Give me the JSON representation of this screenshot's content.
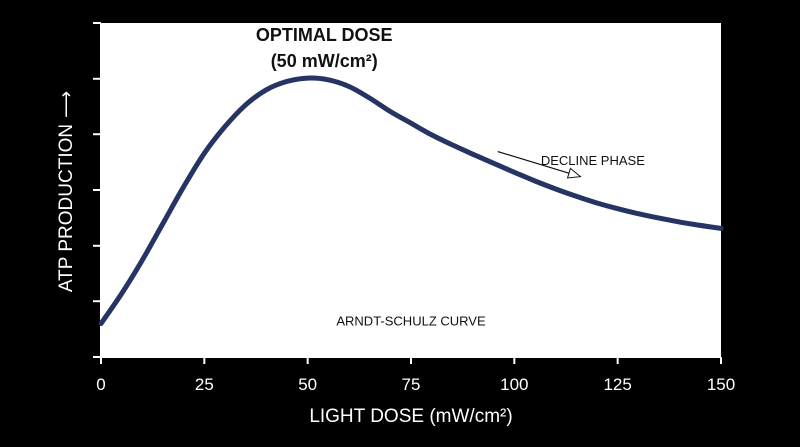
{
  "chart_data": {
    "type": "line",
    "title": "",
    "xlabel": "LIGHT DOSE (mW/cm²)",
    "ylabel": "ATP PRODUCTION",
    "ylabel_arrow": "⟶",
    "xlim": [
      0,
      150
    ],
    "ylim": [
      0,
      100
    ],
    "x_ticks": [
      0,
      25,
      50,
      75,
      100,
      125,
      150
    ],
    "x_tick_labels": [
      "0",
      "25",
      "50",
      "75",
      "100",
      "125",
      "150"
    ],
    "y_ticks": [
      0,
      16.7,
      33.3,
      50,
      66.7,
      83.3,
      100
    ],
    "y_tick_labels": [],
    "grid": false,
    "series": [
      {
        "name": "",
        "color": "#253463",
        "x": [
          0,
          5,
          10,
          15,
          20,
          25,
          30,
          35,
          40,
          45,
          50,
          55,
          60,
          65,
          70,
          75,
          80,
          85,
          90,
          95,
          100,
          105,
          110,
          115,
          120,
          125,
          130,
          135,
          140,
          145,
          150
        ],
        "y": [
          10,
          19,
          29,
          40,
          51,
          61,
          69,
          75.5,
          80,
          82.5,
          83.5,
          83,
          81,
          77.5,
          73.5,
          70,
          66.5,
          63.5,
          60.7,
          58,
          55.3,
          52.7,
          50.3,
          48.1,
          46.1,
          44.4,
          42.9,
          41.6,
          40.4,
          39.4,
          38.5
        ]
      }
    ],
    "annotations": {
      "peak_label_line1": "OPTIMAL DOSE",
      "peak_label_line2": "(50 mW/cm²)",
      "peak_label_at": [
        54,
        94
      ],
      "decline_label": "DECLINE PHASE",
      "decline_label_at": [
        119,
        57.5
      ],
      "decline_arrow_from": [
        96,
        61.5
      ],
      "decline_arrow_to": [
        116,
        54
      ],
      "curve_name_label": "ARNDT-SCHULZ CURVE",
      "curve_name_at": [
        75,
        9.5
      ]
    },
    "colors": {
      "background": "#000000",
      "plot_area": "#ffffff",
      "curve": "#253463",
      "axis": "#ffffff",
      "annotation_text": "#111111"
    }
  }
}
